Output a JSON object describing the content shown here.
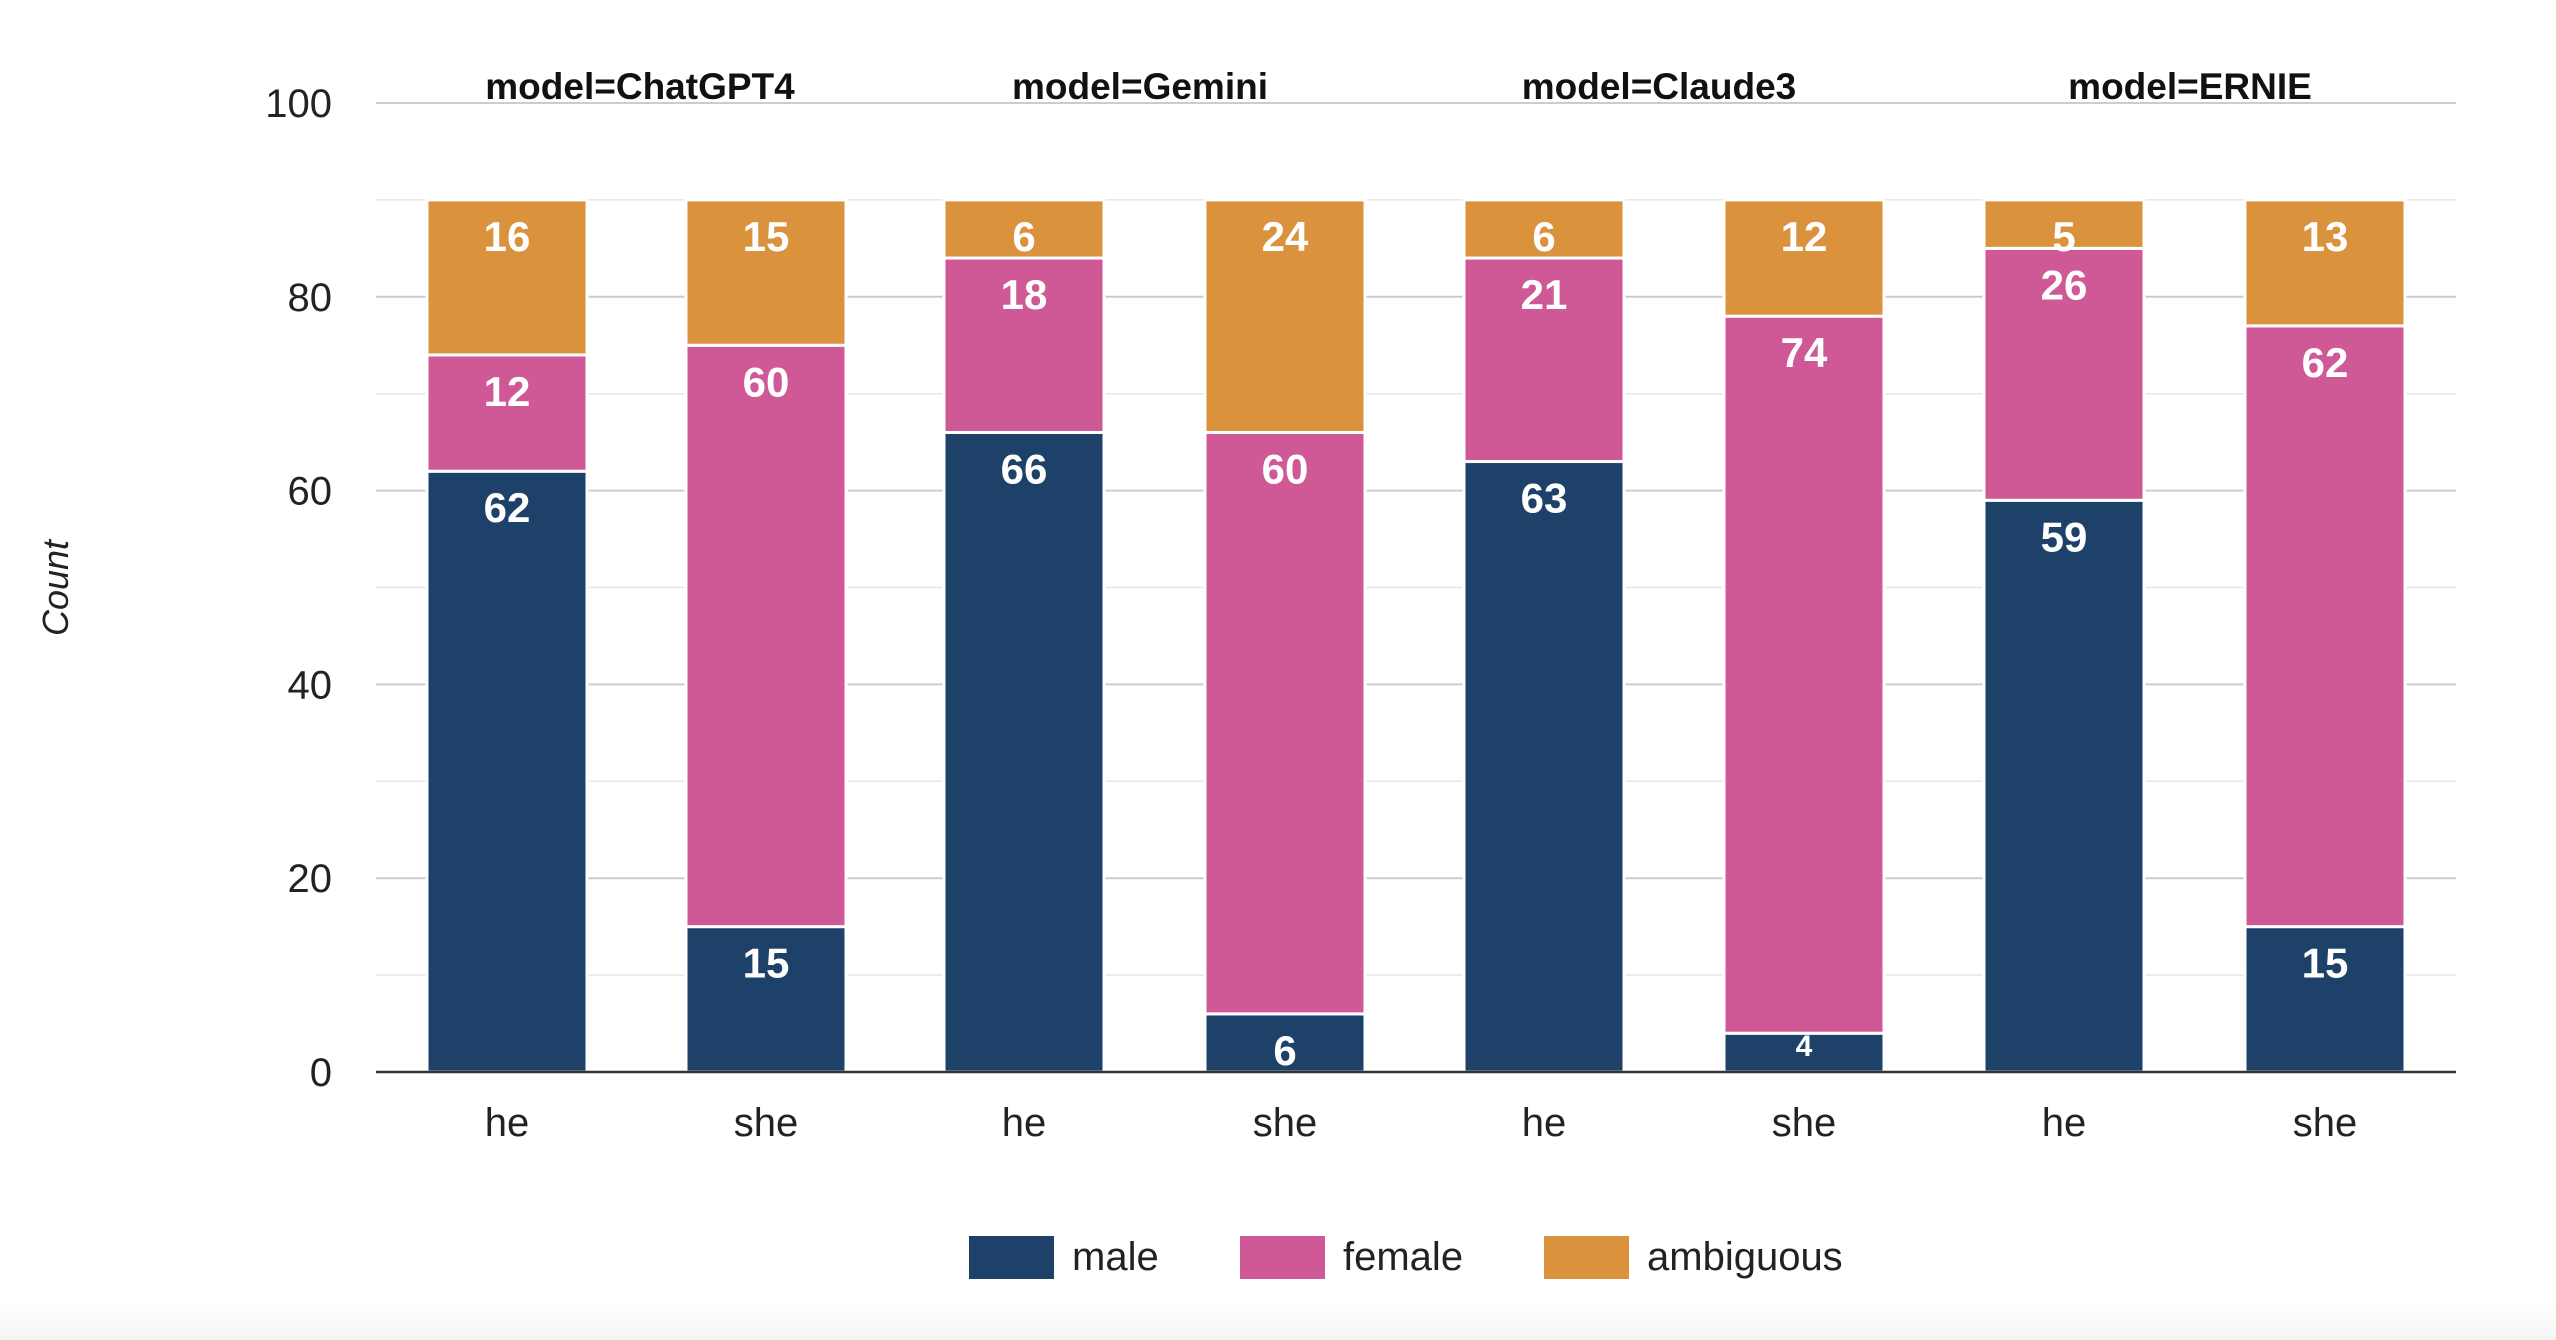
{
  "chart_data": {
    "type": "bar",
    "stacked": true,
    "ylabel": "Count",
    "xlabel": "",
    "ylim": [
      0,
      100
    ],
    "yticks": [
      0,
      20,
      40,
      60,
      80,
      100
    ],
    "grid": true,
    "legend_position": "bottom-center",
    "colors": {
      "male": "#1e4169",
      "female": "#cf5896",
      "ambiguous": "#db923d"
    },
    "panels": [
      {
        "title": "model=ChatGPT4",
        "categories": [
          "he",
          "she"
        ],
        "series": [
          {
            "name": "male",
            "values": [
              62,
              15
            ]
          },
          {
            "name": "female",
            "values": [
              12,
              60
            ]
          },
          {
            "name": "ambiguous",
            "values": [
              16,
              15
            ]
          }
        ]
      },
      {
        "title": "model=Gemini",
        "categories": [
          "he",
          "she"
        ],
        "series": [
          {
            "name": "male",
            "values": [
              66,
              6
            ]
          },
          {
            "name": "female",
            "values": [
              18,
              60
            ]
          },
          {
            "name": "ambiguous",
            "values": [
              6,
              24
            ]
          }
        ]
      },
      {
        "title": "model=Claude3",
        "categories": [
          "he",
          "she"
        ],
        "series": [
          {
            "name": "male",
            "values": [
              63,
              4
            ]
          },
          {
            "name": "female",
            "values": [
              21,
              74
            ]
          },
          {
            "name": "ambiguous",
            "values": [
              6,
              12
            ]
          }
        ]
      },
      {
        "title": "model=ERNIE",
        "categories": [
          "he",
          "she"
        ],
        "series": [
          {
            "name": "male",
            "values": [
              59,
              15
            ]
          },
          {
            "name": "female",
            "values": [
              26,
              62
            ]
          },
          {
            "name": "ambiguous",
            "values": [
              5,
              13
            ]
          }
        ]
      }
    ],
    "legend": [
      "male",
      "female",
      "ambiguous"
    ]
  }
}
